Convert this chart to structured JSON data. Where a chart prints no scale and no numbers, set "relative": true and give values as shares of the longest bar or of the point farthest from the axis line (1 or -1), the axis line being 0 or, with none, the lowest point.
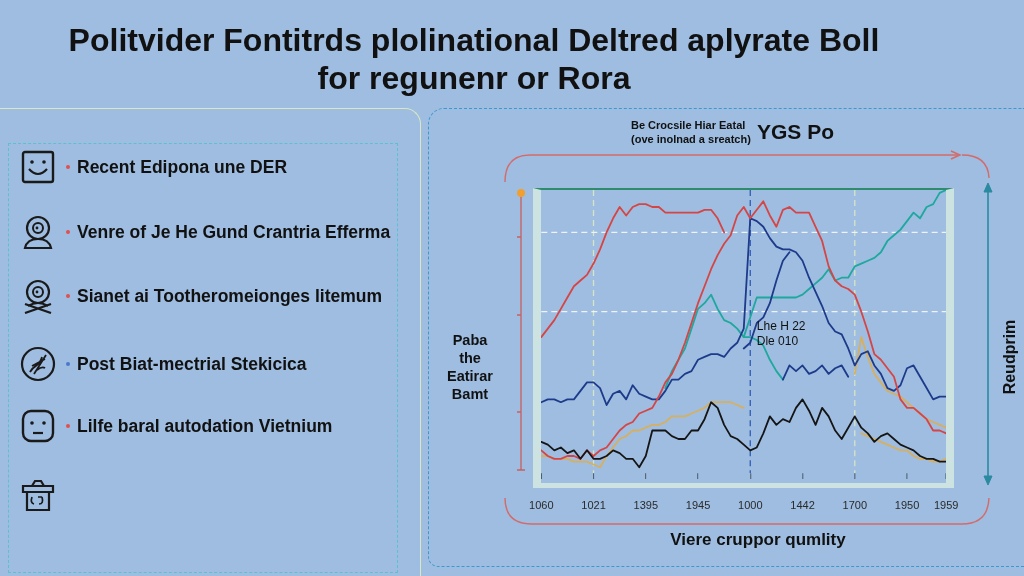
{
  "chart_data": [
    {
      "type": "other",
      "annotations": [
        "Recent Edipona une DER",
        "Venre of Je He Gund Crantria Efferma",
        "Sianet ai Tootheromeionges litemum",
        "Post Biat-mectrial Stekicica",
        "Lilfe baral autodation Vietnium"
      ]
    },
    {
      "type": "line",
      "title": "Politvider Fontitrds plolinational Deltred aplyrate Boll for regunenr or Rora",
      "subtitle": "Be Crocsile Hiar Eatal (ove inolnad a sreatch)",
      "annotations": [
        "YGS Po"
      ],
      "xlabel": "Viere cruppor qumlity",
      "ylabel": "Paba the Eatirar Bamt",
      "y2label": "Reudprim",
      "relative": true,
      "marker": "none",
      "categories": [
        "1060",
        null,
        null,
        null,
        null,
        null,
        null,
        null,
        "1021",
        null,
        null,
        null,
        null,
        null,
        null,
        null,
        "1395",
        null,
        null,
        null,
        null,
        null,
        null,
        null,
        "1945",
        null,
        null,
        null,
        null,
        null,
        null,
        null,
        "1000",
        null,
        null,
        null,
        null,
        null,
        null,
        null,
        "1442",
        null,
        null,
        null,
        null,
        null,
        null,
        null,
        "1700",
        null,
        null,
        null,
        null,
        null,
        null,
        null,
        "1950",
        null,
        null,
        null,
        null,
        null,
        "1959"
      ],
      "series": [
        {
          "color": "#151515",
          "values": [
            0.11,
            0.1,
            0.08,
            0.09,
            0.07,
            0.08,
            0.05,
            0.08,
            0.05,
            0.05,
            0.06,
            0.08,
            0.07,
            0.05,
            0.05,
            0.02,
            0.06,
            0.15,
            0.15,
            0.15,
            0.13,
            0.12,
            0.12,
            0.15,
            0.15,
            0.19,
            0.25,
            0.23,
            0.17,
            0.13,
            0.12,
            0.1,
            0.08,
            0.09,
            0.14,
            0.2,
            0.17,
            0.19,
            0.18,
            0.23,
            0.26,
            0.22,
            0.17,
            0.23,
            0.2,
            0.15,
            0.12,
            0.16,
            0.2,
            0.16,
            0.14,
            0.11,
            0.13,
            0.14,
            0.12,
            0.1,
            0.09,
            0.08,
            0.06,
            0.05,
            0.05,
            0.04,
            0.04
          ]
        },
        {
          "color": "#d64545",
          "values": [
            0.08,
            0.06,
            0.05,
            0.05,
            0.06,
            0.06,
            0.05,
            0.08,
            0.06,
            0.08,
            0.09,
            0.12,
            0.15,
            0.17,
            0.18,
            0.21,
            0.22,
            0.23,
            0.27,
            0.32,
            0.35,
            0.4,
            0.46,
            0.53,
            0.6,
            0.66,
            0.72,
            0.77,
            0.81,
            0.84,
            0.91,
            0.94,
            0.9,
            0.93,
            0.96,
            0.91,
            0.87,
            0.93,
            0.94,
            0.92,
            0.92,
            0.92,
            0.87,
            0.82,
            0.73,
            0.68,
            0.66,
            0.65,
            0.63,
            0.57,
            0.5,
            0.42,
            0.4,
            0.37,
            0.34,
            0.26,
            0.23,
            0.23,
            0.21,
            0.19,
            0.15,
            0.15,
            0.14
          ]
        },
        {
          "color": "#d64545",
          "values": [
            0.48,
            0.51,
            0.54,
            0.58,
            0.62,
            0.66,
            0.68,
            0.7,
            0.74,
            0.79,
            0.85,
            0.9,
            0.94,
            0.91,
            0.94,
            0.95,
            0.95,
            0.94,
            0.94,
            0.92,
            0.92,
            0.92,
            0.92,
            0.92,
            0.92,
            0.93,
            0.93,
            0.9,
            0.85,
            null,
            null,
            null,
            null,
            null,
            null,
            null,
            null,
            null,
            null,
            null,
            null,
            null,
            null,
            null,
            null,
            null,
            null,
            null,
            null,
            null,
            null,
            null,
            null,
            null,
            null,
            null,
            null,
            null,
            null,
            null,
            null,
            null,
            null
          ]
        },
        {
          "color": "#1e3a8a",
          "values": [
            0.25,
            0.26,
            0.26,
            0.25,
            0.26,
            0.26,
            0.29,
            0.32,
            0.32,
            0.3,
            0.24,
            0.28,
            0.29,
            0.26,
            0.31,
            0.28,
            0.27,
            0.26,
            0.26,
            0.29,
            0.33,
            0.33,
            0.35,
            0.36,
            0.4,
            0.41,
            0.42,
            0.42,
            0.41,
            0.44,
            0.46,
            0.51,
            0.9,
            0.89,
            0.87,
            0.83,
            0.8,
            0.79,
            0.79,
            0.78,
            0.75,
            0.69,
            0.64,
            0.59,
            0.53,
            0.5,
            0.49,
            0.44,
            0.38,
            0.42,
            0.43,
            0.38,
            0.35,
            0.3,
            0.29,
            0.31,
            0.37,
            0.38,
            0.34,
            0.3,
            0.26,
            0.27,
            0.27
          ]
        },
        {
          "color": "#1e3a8a",
          "values": [
            null,
            null,
            null,
            null,
            null,
            null,
            null,
            null,
            null,
            null,
            null,
            null,
            null,
            null,
            null,
            null,
            null,
            null,
            null,
            null,
            null,
            null,
            null,
            null,
            null,
            null,
            null,
            null,
            null,
            null,
            null,
            0.44,
            0.46,
            0.53,
            0.55,
            0.6,
            0.68,
            0.75,
            0.78,
            null,
            null,
            null,
            null,
            null,
            null,
            null,
            null,
            null,
            null,
            null,
            null,
            null,
            null,
            null,
            null,
            null,
            null,
            null,
            null,
            null,
            null,
            null,
            null
          ]
        },
        {
          "color": "#1e3a8a",
          "values": [
            null,
            null,
            null,
            null,
            null,
            null,
            null,
            null,
            null,
            null,
            null,
            null,
            null,
            null,
            null,
            null,
            null,
            null,
            null,
            null,
            null,
            null,
            null,
            null,
            null,
            null,
            null,
            null,
            null,
            null,
            null,
            null,
            null,
            null,
            null,
            null,
            null,
            0.33,
            0.38,
            0.36,
            0.38,
            0.35,
            0.36,
            0.38,
            0.35,
            0.37,
            0.38,
            0.34,
            null,
            null,
            null,
            null,
            null,
            null,
            null,
            null,
            null,
            null,
            null,
            null,
            null,
            null,
            null
          ]
        },
        {
          "color": "#1ea89e",
          "values": [
            null,
            null,
            null,
            null,
            null,
            null,
            null,
            null,
            null,
            null,
            null,
            null,
            null,
            null,
            null,
            null,
            null,
            null,
            null,
            0.3,
            0.36,
            0.4,
            0.44,
            0.51,
            0.58,
            0.6,
            0.63,
            0.58,
            0.54,
            0.53,
            0.51,
            0.48,
            0.55,
            0.62,
            0.62,
            0.62,
            0.62,
            0.62,
            0.62,
            0.62,
            0.63,
            0.65,
            0.67,
            0.69,
            0.72,
            0.68,
            0.69,
            0.69,
            0.73,
            0.74,
            0.75,
            0.76,
            0.78,
            0.82,
            0.84,
            0.86,
            0.89,
            0.92,
            0.9,
            0.94,
            0.95,
            0.99,
            1.0
          ]
        },
        {
          "color": "#1ea89e",
          "values": [
            null,
            null,
            null,
            null,
            null,
            null,
            null,
            null,
            null,
            null,
            null,
            null,
            null,
            null,
            null,
            null,
            null,
            null,
            null,
            null,
            null,
            null,
            null,
            null,
            null,
            null,
            null,
            null,
            null,
            null,
            null,
            0.48,
            0.48,
            0.47,
            0.45,
            0.4,
            0.36,
            0.33,
            null,
            null,
            null,
            null,
            null,
            null,
            null,
            null,
            null,
            null,
            null,
            null,
            null,
            null,
            null,
            null,
            null,
            null,
            null,
            null,
            null,
            null,
            null,
            null,
            null
          ]
        },
        {
          "color": "#d6b060",
          "values": [
            0.06,
            0.06,
            0.05,
            0.05,
            0.05,
            0.04,
            0.04,
            0.04,
            0.03,
            0.02,
            0.06,
            0.09,
            0.12,
            0.13,
            0.15,
            0.15,
            0.16,
            0.17,
            0.17,
            0.18,
            0.2,
            0.2,
            0.2,
            0.21,
            0.22,
            0.23,
            0.25,
            0.25,
            0.25,
            0.25,
            0.24,
            0.23,
            null,
            null,
            null,
            null,
            null,
            null,
            null,
            null,
            null,
            null,
            null,
            null,
            null,
            null,
            null,
            null,
            null,
            0.14,
            0.13,
            0.12,
            0.11,
            0.1,
            0.09,
            0.08,
            0.08,
            0.06,
            0.05,
            0.05,
            0.04,
            0.04,
            0.05
          ]
        },
        {
          "color": "#d6b060",
          "values": [
            null,
            null,
            null,
            null,
            null,
            null,
            null,
            null,
            null,
            null,
            null,
            null,
            null,
            null,
            null,
            null,
            null,
            null,
            null,
            null,
            null,
            null,
            null,
            null,
            null,
            null,
            null,
            null,
            null,
            null,
            null,
            null,
            null,
            null,
            null,
            null,
            null,
            null,
            null,
            null,
            null,
            null,
            null,
            null,
            null,
            null,
            null,
            null,
            0.35,
            0.48,
            0.41,
            0.35,
            0.32,
            0.29,
            0.28,
            0.27,
            0.25,
            0.23,
            0.21,
            0.19,
            0.18,
            0.17,
            0.16
          ]
        }
      ],
      "ref_lines": [
        {
          "axis": "x",
          "value": "1000",
          "label": "Lhe H 22 Dle 010",
          "color": "#2f5db5",
          "line_style": "dashed"
        },
        {
          "axis": "x",
          "value": "1021",
          "color": "#d5e5c5",
          "line_style": "dashed"
        },
        {
          "axis": "x",
          "value": "1700",
          "color": "#d5e5c5",
          "line_style": "dashed"
        },
        {
          "axis": "y",
          "value": 0.85,
          "color": "#eef3f8",
          "line_style": "dashed"
        },
        {
          "axis": "y",
          "value": 0.57,
          "color": "#eef3f8",
          "line_style": "dashed"
        }
      ]
    }
  ]
}
